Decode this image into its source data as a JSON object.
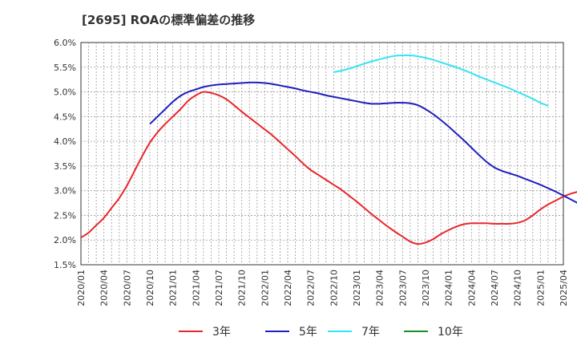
{
  "title": "[2695]  ROAの標準偏差の推移",
  "chart_data": {
    "type": "line",
    "title": "[2695]  ROAの標準偏差の推移",
    "ylim": [
      1.5,
      6.0
    ],
    "y_ticks": [
      "1.5%",
      "2.0%",
      "2.5%",
      "3.0%",
      "3.5%",
      "4.0%",
      "4.5%",
      "5.0%",
      "5.5%",
      "6.0%"
    ],
    "y_tick_values": [
      1.5,
      2.0,
      2.5,
      3.0,
      3.5,
      4.0,
      4.5,
      5.0,
      5.5,
      6.0
    ],
    "x_ticks": [
      "2020/01",
      "2020/04",
      "2020/07",
      "2020/10",
      "2021/01",
      "2021/04",
      "2021/07",
      "2021/10",
      "2022/01",
      "2022/04",
      "2022/07",
      "2022/10",
      "2023/01",
      "2023/04",
      "2023/07",
      "2023/10",
      "2024/01",
      "2024/04",
      "2024/07",
      "2024/10",
      "2025/01",
      "2025/04"
    ],
    "grid": true,
    "legend_position": "bottom",
    "series": [
      {
        "name": "3年",
        "color": "#e8262b",
        "start": "2020/01",
        "values": [
          2.05,
          2.15,
          2.3,
          2.45,
          2.65,
          2.85,
          3.1,
          3.4,
          3.7,
          3.97,
          4.18,
          4.35,
          4.5,
          4.65,
          4.82,
          4.93,
          5.0,
          4.98,
          4.93,
          4.85,
          4.73,
          4.6,
          4.48,
          4.36,
          4.24,
          4.12,
          3.98,
          3.84,
          3.7,
          3.55,
          3.42,
          3.32,
          3.22,
          3.12,
          3.02,
          2.9,
          2.78,
          2.65,
          2.52,
          2.4,
          2.28,
          2.17,
          2.07,
          1.97,
          1.92,
          1.95,
          2.02,
          2.12,
          2.2,
          2.27,
          2.32,
          2.34,
          2.34,
          2.34,
          2.33,
          2.33,
          2.33,
          2.35,
          2.4,
          2.5,
          2.62,
          2.72,
          2.8,
          2.88,
          2.94,
          2.98,
          3.0,
          3.01,
          3.01,
          3.01,
          3.0
        ]
      },
      {
        "name": "5年",
        "color": "#1f1fbf",
        "start": "2020/10",
        "values": [
          4.35,
          4.5,
          4.65,
          4.8,
          4.92,
          5.0,
          5.05,
          5.1,
          5.13,
          5.15,
          5.16,
          5.17,
          5.18,
          5.19,
          5.19,
          5.18,
          5.16,
          5.13,
          5.1,
          5.07,
          5.03,
          5.0,
          4.97,
          4.93,
          4.9,
          4.87,
          4.84,
          4.81,
          4.78,
          4.76,
          4.76,
          4.77,
          4.78,
          4.78,
          4.77,
          4.73,
          4.65,
          4.55,
          4.43,
          4.3,
          4.16,
          4.02,
          3.87,
          3.72,
          3.58,
          3.47,
          3.4,
          3.35,
          3.3,
          3.24,
          3.18,
          3.12,
          3.05,
          2.98,
          2.9,
          2.82,
          2.74,
          2.66,
          2.58
        ]
      },
      {
        "name": "7年",
        "color": "#33e5f2",
        "start": "2022/10",
        "values": [
          5.4,
          5.43,
          5.47,
          5.52,
          5.57,
          5.62,
          5.66,
          5.7,
          5.73,
          5.74,
          5.74,
          5.72,
          5.69,
          5.65,
          5.6,
          5.55,
          5.5,
          5.44,
          5.38,
          5.31,
          5.25,
          5.19,
          5.13,
          5.07,
          5.0,
          4.93,
          4.86,
          4.78,
          4.72
        ]
      },
      {
        "name": "10年",
        "color": "#1e8c1e",
        "start": "2020/01",
        "values": []
      }
    ]
  },
  "legend": [
    {
      "label": "3年",
      "color": "#e8262b"
    },
    {
      "label": "5年",
      "color": "#1f1fbf"
    },
    {
      "label": "7年",
      "color": "#33e5f2"
    },
    {
      "label": "10年",
      "color": "#1e8c1e"
    }
  ]
}
